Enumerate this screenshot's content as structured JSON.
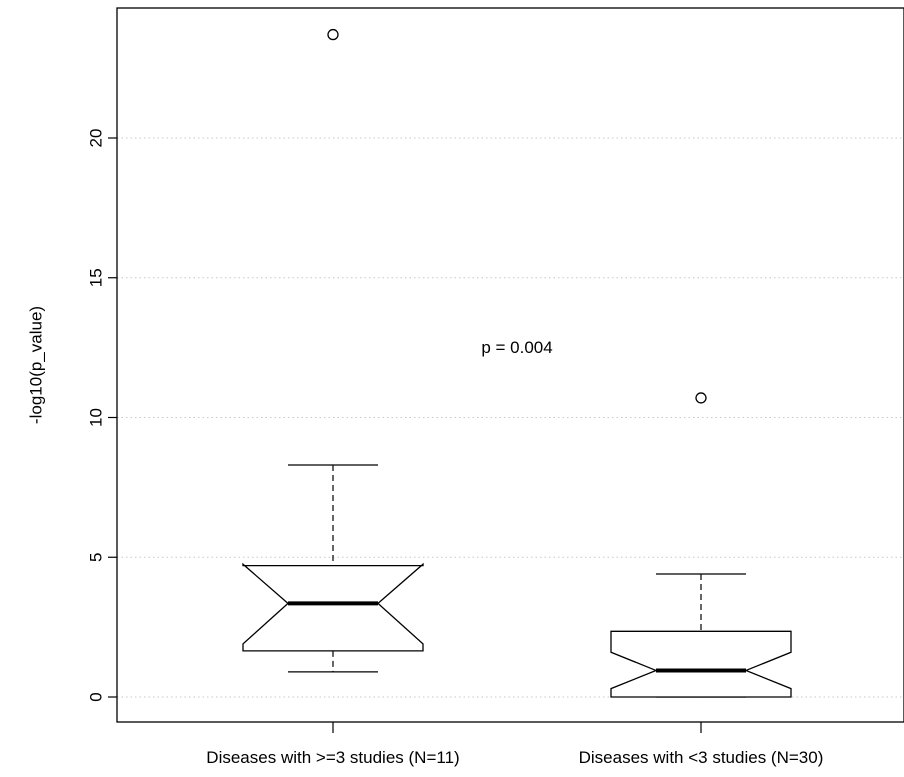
{
  "chart_data": {
    "type": "boxplot",
    "ylabel": "-log10(p_value)",
    "ylim": [
      -1.0,
      24.5
    ],
    "y_ticks": [
      0,
      5,
      10,
      15,
      20
    ],
    "y_tick_labels": [
      "0",
      "5",
      "10",
      "15",
      "20"
    ],
    "grid": "horizontal dotted",
    "notched": true,
    "annotation": {
      "text": "p = 0.004",
      "y": 12.5
    },
    "boxes": [
      {
        "label": "Diseases with >=3 studies (N=11)",
        "whisker_low": 0.9,
        "q1": 1.65,
        "median": 3.35,
        "q3": 4.7,
        "whisker_high": 8.3,
        "notch_low": 1.9,
        "notch_high": 4.75,
        "outliers": [
          23.7
        ]
      },
      {
        "label": "Diseases with <3 studies (N=30)",
        "whisker_low": 0.0,
        "q1": 0.0,
        "median": 0.95,
        "q3": 2.35,
        "whisker_high": 4.4,
        "notch_low": 0.3,
        "notch_high": 1.6,
        "outliers": [
          10.7
        ]
      }
    ]
  }
}
